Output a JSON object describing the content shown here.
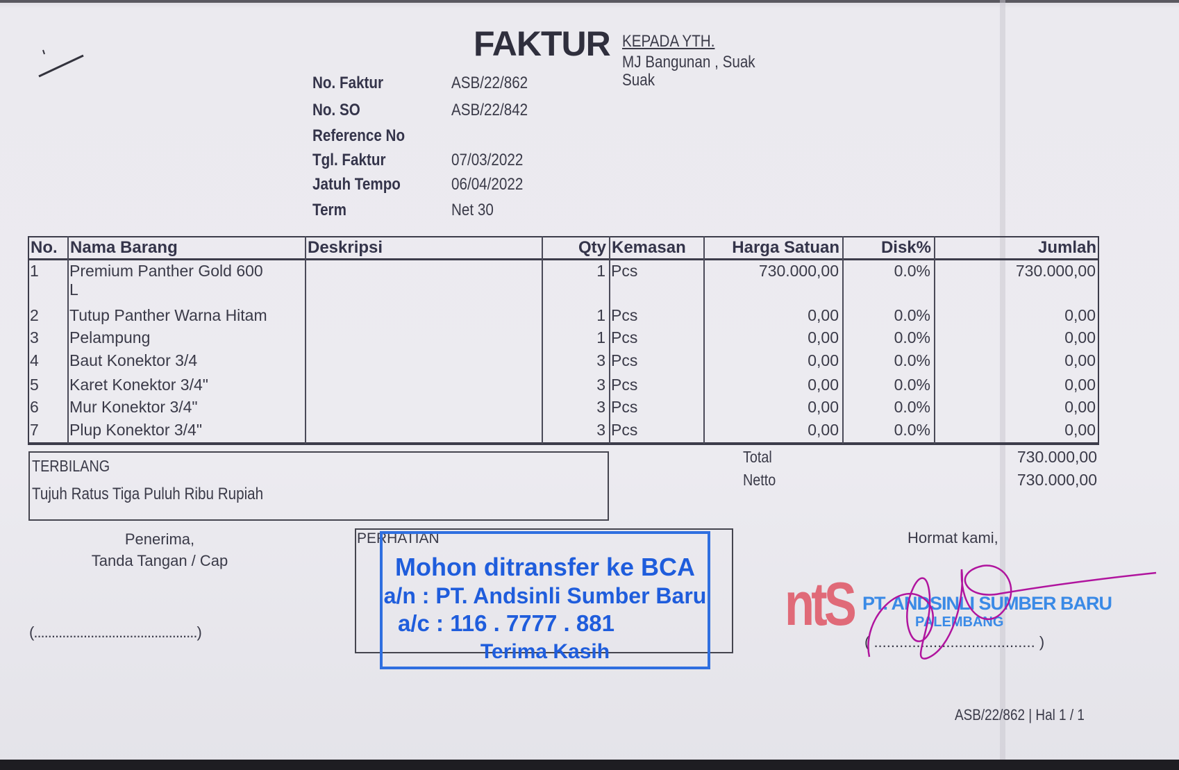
{
  "header": {
    "title": "FAKTUR",
    "recipient_label": "KEPADA YTH.",
    "recipient_lines": [
      "MJ Bangunan , Suak",
      "Suak"
    ]
  },
  "info": [
    {
      "label": "No. Faktur",
      "value": "ASB/22/862"
    },
    {
      "label": "No. SO",
      "value": "ASB/22/842"
    },
    {
      "label": "Reference No",
      "value": ""
    },
    {
      "label": "Tgl. Faktur",
      "value": "07/03/2022"
    },
    {
      "label": "Jatuh Tempo",
      "value": "06/04/2022"
    },
    {
      "label": "Term",
      "value": "Net 30"
    }
  ],
  "table": {
    "columns": [
      "No.",
      "Nama Barang",
      "Deskripsi",
      "Qty",
      "Kemasan",
      "Harga Satuan",
      "Disk%",
      "Jumlah"
    ],
    "rows": [
      {
        "no": "1",
        "name": "Premium Panther Gold  600",
        "name_cont": "L",
        "desc": "",
        "qty": "1",
        "unit": "Pcs",
        "price": "730.000,00",
        "disc": "0.0%",
        "total": "730.000,00"
      },
      {
        "no": "2",
        "name": "Tutup Panther Warna Hitam",
        "desc": "",
        "qty": "1",
        "unit": "Pcs",
        "price": "0,00",
        "disc": "0.0%",
        "total": "0,00"
      },
      {
        "no": "3",
        "name": "Pelampung",
        "desc": "",
        "qty": "1",
        "unit": "Pcs",
        "price": "0,00",
        "disc": "0.0%",
        "total": "0,00"
      },
      {
        "no": "4",
        "name": "Baut Konektor 3/4",
        "desc": "",
        "qty": "3",
        "unit": "Pcs",
        "price": "0,00",
        "disc": "0.0%",
        "total": "0,00"
      },
      {
        "no": "5",
        "name": "Karet Konektor 3/4\"",
        "desc": "",
        "qty": "3",
        "unit": "Pcs",
        "price": "0,00",
        "disc": "0.0%",
        "total": "0,00"
      },
      {
        "no": "6",
        "name": "Mur Konektor 3/4\"",
        "desc": "",
        "qty": "3",
        "unit": "Pcs",
        "price": "0,00",
        "disc": "0.0%",
        "total": "0,00"
      },
      {
        "no": "7",
        "name": "Plup Konektor 3/4\"",
        "desc": "",
        "qty": "3",
        "unit": "Pcs",
        "price": "0,00",
        "disc": "0.0%",
        "total": "0,00"
      }
    ]
  },
  "summary": {
    "total_label": "Total",
    "total_value": "730.000,00",
    "netto_label": "Netto",
    "netto_value": "730.000,00"
  },
  "terbilang": {
    "label": "TERBILANG",
    "text": "Tujuh Ratus Tiga Puluh Ribu Rupiah"
  },
  "receiver": {
    "line1": "Penerima,",
    "line2": "Tanda Tangan / Cap",
    "signature_line": "(..............................................)"
  },
  "notice": {
    "label": "PERHATIAN",
    "stamp_lines": [
      "Mohon ditransfer ke BCA",
      "a/n : PT. Andsinli Sumber Baru",
      "a/c : 116 . 7777 . 881",
      "Terima Kasih"
    ],
    "stamp_color": "#1f5ddc"
  },
  "sender": {
    "closing": "Hormat kami,",
    "logo_text": "ntS",
    "logo_color": "#e06a78",
    "company": "PT. ANDSINLI SUMBER BARU",
    "city": "PALEMBANG",
    "signature_line": "( ...................................... )",
    "signature_color": "#b0149e"
  },
  "footer": {
    "page_ref": "ASB/22/862 | Hal 1 / 1"
  }
}
